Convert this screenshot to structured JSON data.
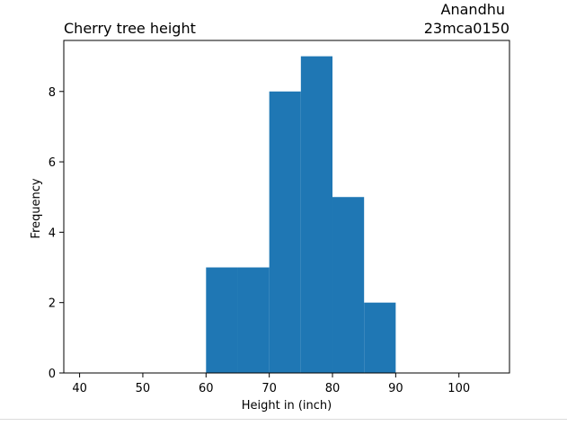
{
  "chart_data": {
    "type": "bar",
    "title_left": "Cherry tree height",
    "title_right_line1": "Anandhu",
    "title_right_line2": "23mca0150",
    "xlabel": "Height in (inch)",
    "ylabel": "Frequency",
    "xlim": [
      37.5,
      108
    ],
    "ylim": [
      0,
      9.45
    ],
    "x_ticks": [
      40,
      50,
      60,
      70,
      80,
      90,
      100
    ],
    "y_ticks": [
      0,
      2,
      4,
      6,
      8
    ],
    "bins": [
      {
        "x0": 60,
        "x1": 65,
        "count": 3
      },
      {
        "x0": 65,
        "x1": 70,
        "count": 3
      },
      {
        "x0": 70,
        "x1": 75,
        "count": 8
      },
      {
        "x0": 75,
        "x1": 80,
        "count": 9
      },
      {
        "x0": 80,
        "x1": 85,
        "count": 5
      },
      {
        "x0": 85,
        "x1": 90,
        "count": 2
      }
    ],
    "bar_color": "#1f77b4",
    "grid": false,
    "legend": "none"
  }
}
